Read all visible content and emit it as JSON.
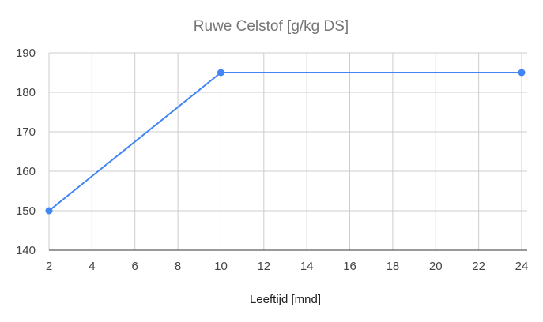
{
  "chart_data": {
    "type": "line",
    "title": "Ruwe Celstof [g/kg DS]",
    "xlabel": "Leeftijd [mnd]",
    "ylabel": "",
    "xlim": [
      2,
      24
    ],
    "ylim": [
      140,
      190
    ],
    "xticks": [
      2,
      4,
      6,
      8,
      10,
      12,
      14,
      16,
      18,
      20,
      22,
      24
    ],
    "yticks": [
      140,
      150,
      160,
      170,
      180,
      190
    ],
    "grid": true,
    "legend": "none",
    "series": [
      {
        "color": "#4285f4",
        "points": [
          {
            "x": 2,
            "y": 150
          },
          {
            "x": 10,
            "y": 185
          },
          {
            "x": 24,
            "y": 185
          }
        ]
      }
    ]
  }
}
